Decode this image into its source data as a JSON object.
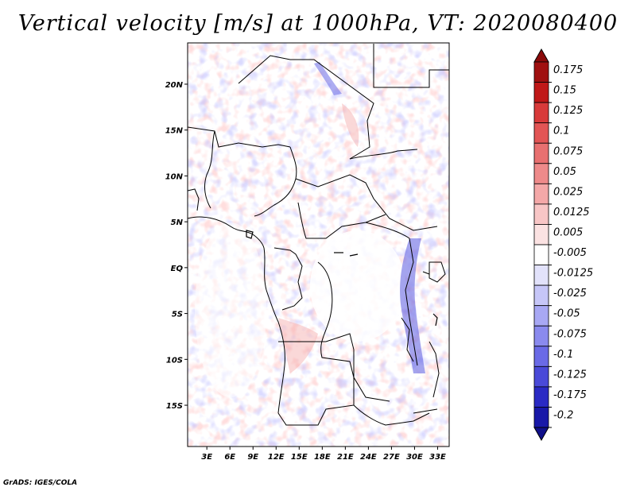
{
  "title": "Vertical velocity [m/s] at 1000hPa, VT: 2020080400",
  "footer": "GrADS: IGES/COLA",
  "map": {
    "lat_range": [
      -19.5,
      24.5
    ],
    "lon_range": [
      0.5,
      34.5
    ],
    "lat_ticks": [
      {
        "value": 20,
        "label": "20N"
      },
      {
        "value": 15,
        "label": "15N"
      },
      {
        "value": 10,
        "label": "10N"
      },
      {
        "value": 5,
        "label": "5N"
      },
      {
        "value": 0,
        "label": "EQ"
      },
      {
        "value": -5,
        "label": "5S"
      },
      {
        "value": -10,
        "label": "10S"
      },
      {
        "value": -15,
        "label": "15S"
      }
    ],
    "lon_ticks": [
      {
        "value": 3,
        "label": "3E"
      },
      {
        "value": 6,
        "label": "6E"
      },
      {
        "value": 9,
        "label": "9E"
      },
      {
        "value": 12,
        "label": "12E"
      },
      {
        "value": 15,
        "label": "15E"
      },
      {
        "value": 18,
        "label": "18E"
      },
      {
        "value": 21,
        "label": "21E"
      },
      {
        "value": 24,
        "label": "24E"
      },
      {
        "value": 27,
        "label": "27E"
      },
      {
        "value": 30,
        "label": "30E"
      },
      {
        "value": 33,
        "label": "33E"
      }
    ]
  },
  "colorbar": {
    "levels": [
      {
        "label": "0.175",
        "color": "#a01010"
      },
      {
        "label": "0.15",
        "color": "#c01818"
      },
      {
        "label": "0.125",
        "color": "#d83a3a"
      },
      {
        "label": "0.1",
        "color": "#e25555"
      },
      {
        "label": "0.075",
        "color": "#e87070"
      },
      {
        "label": "0.05",
        "color": "#ee8a8a"
      },
      {
        "label": "0.025",
        "color": "#f4a8a8"
      },
      {
        "label": "0.0125",
        "color": "#f8c6c6"
      },
      {
        "label": "0.005",
        "color": "#fbe2e2"
      },
      {
        "label": "-0.005",
        "color": "#ffffff"
      },
      {
        "label": "-0.0125",
        "color": "#e2e2fb"
      },
      {
        "label": "-0.025",
        "color": "#c6c6f8"
      },
      {
        "label": "-0.05",
        "color": "#a8a8f4"
      },
      {
        "label": "-0.075",
        "color": "#8a8aee"
      },
      {
        "label": "-0.1",
        "color": "#6a6ae6"
      },
      {
        "label": "-0.125",
        "color": "#4a4ad8"
      },
      {
        "label": "-0.175",
        "color": "#2a2ac4"
      },
      {
        "label": "-0.2",
        "color": "#1818a8"
      }
    ],
    "top_arrow_color": "#8a0a0a",
    "bottom_arrow_color": "#10108a"
  }
}
